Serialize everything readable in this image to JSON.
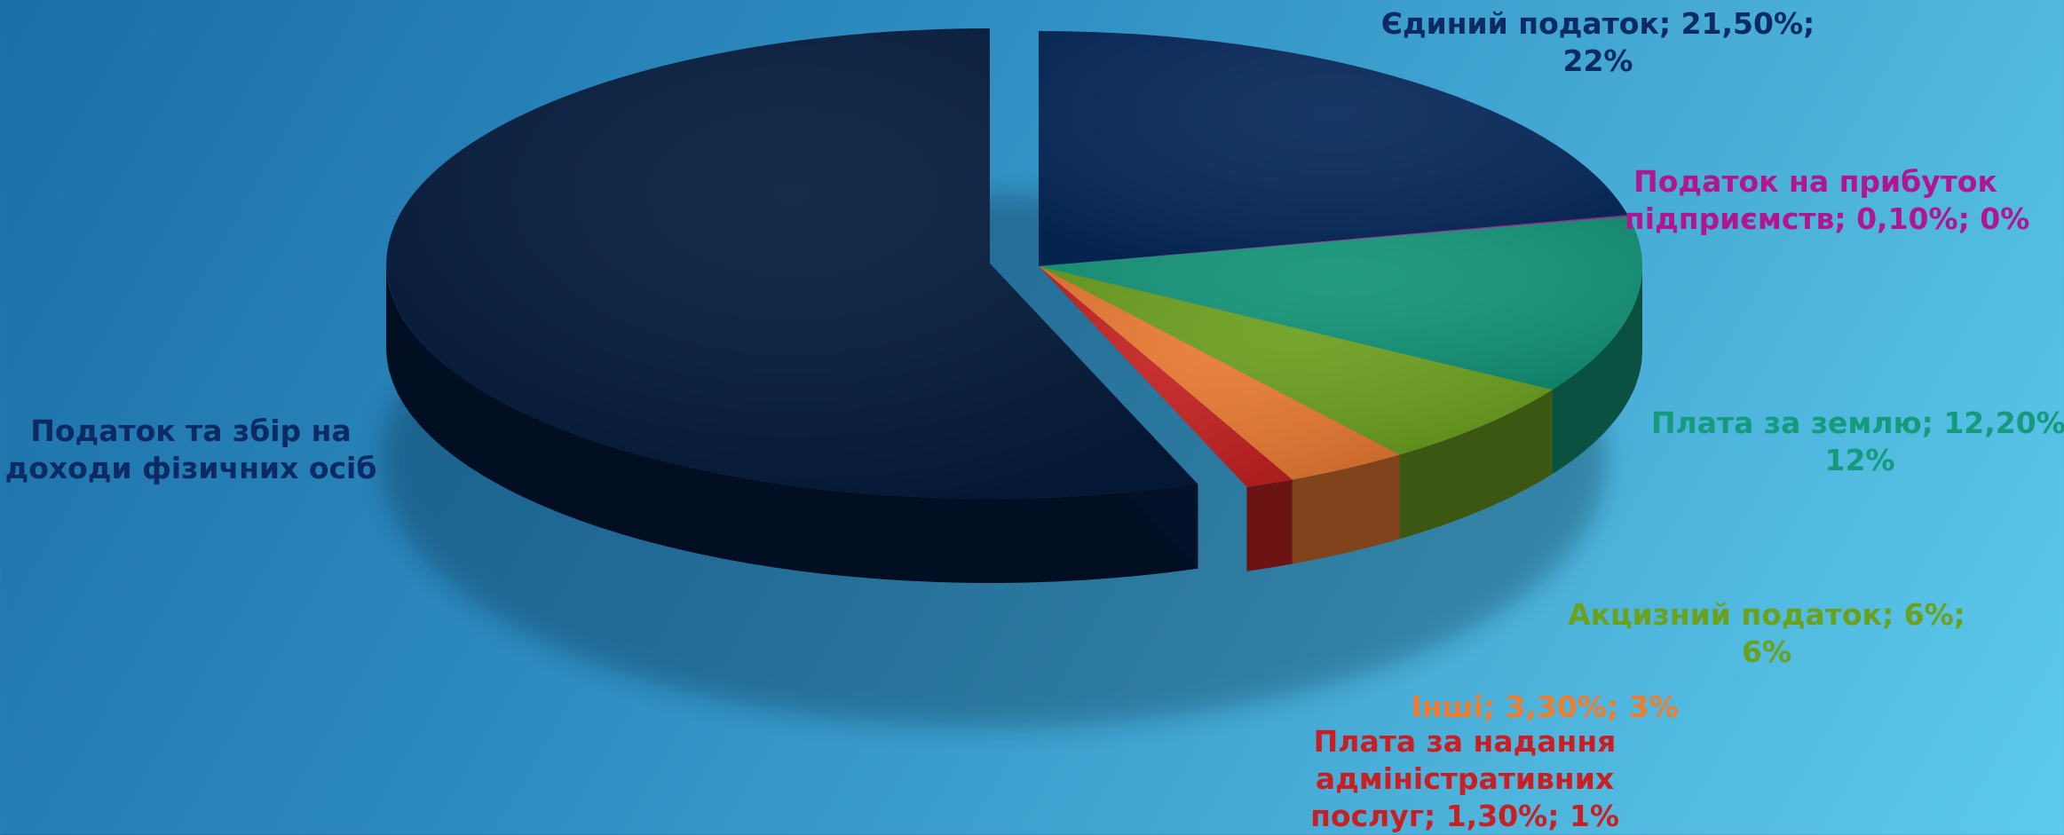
{
  "chart_data": {
    "type": "pie",
    "title": "",
    "legend": "none",
    "slices": [
      {
        "name": "Єдиний податок",
        "value": 21.5,
        "rounded": "22%",
        "color": "#06285a",
        "label_lines": [
          "Єдиний податок; 21,50%;",
          "22%"
        ],
        "label_color": "#0c2a63"
      },
      {
        "name": "Податок на прибуток підприємств",
        "value": 0.1,
        "rounded": "0%",
        "color": "#b0168e",
        "label_lines": [
          "Податок на прибуток",
          "підприємств; 0,10%; 0%"
        ],
        "label_color": "#b0168e"
      },
      {
        "name": "Плата за землю",
        "value": 12.2,
        "rounded": "12%",
        "color": "#139478",
        "label_lines": [
          "Плата за землю; 12,20%;",
          "12%"
        ],
        "label_color": "#169a7e"
      },
      {
        "name": "Акцизний податок",
        "value": 6,
        "rounded": "6%",
        "color": "#6b9f1f",
        "label_lines": [
          "Акцизний податок; 6%;",
          "6%"
        ],
        "label_color": "#6aa11e"
      },
      {
        "name": "Інші",
        "value": 3.3,
        "rounded": "3%",
        "color": "#e87a33",
        "label_lines": [
          "Інші; 3,30%; 3%"
        ],
        "label_color": "#ef7d30"
      },
      {
        "name": "Плата за надання адміністративних послуг",
        "value": 1.3,
        "rounded": "1%",
        "color": "#c42222",
        "label_lines": [
          "Плата за надання",
          "адміністративних",
          "послуг; 1,30%; 1%"
        ],
        "label_color": "#c81f25"
      },
      {
        "name": "Податок та збір на доходи фізичних осіб",
        "value": 55.6,
        "rounded": "",
        "color": "#041a3c",
        "label_lines": [
          "Податок та збір на",
          "доходи фізичних осіб"
        ],
        "label_color": "#0c2a63"
      }
    ]
  }
}
